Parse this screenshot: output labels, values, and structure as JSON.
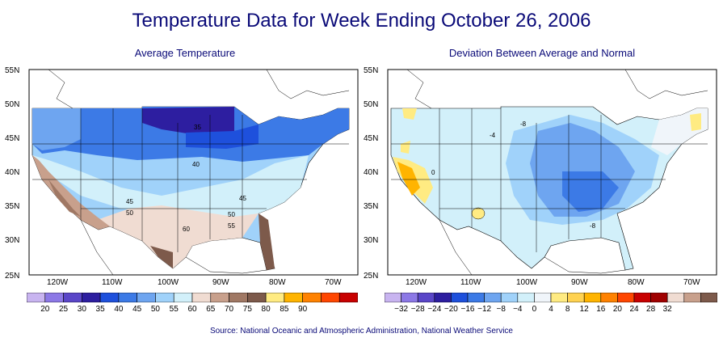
{
  "title": "Temperature Data for Week Ending October 26, 2006",
  "left_panel": {
    "subtitle": "Average Temperature",
    "lat_ticks": [
      "55N",
      "50N",
      "45N",
      "40N",
      "35N",
      "30N",
      "25N"
    ],
    "lon_ticks": [
      "120W",
      "110W",
      "100W",
      "90W",
      "80W",
      "70W"
    ],
    "contour_labels": [
      "35",
      "40",
      "45",
      "45",
      "50",
      "50",
      "60",
      "55"
    ],
    "colorbar": {
      "labels": [
        "20",
        "25",
        "30",
        "35",
        "40",
        "45",
        "50",
        "55",
        "60",
        "65",
        "70",
        "75",
        "80",
        "85",
        "90"
      ],
      "colors": [
        "#c8b4f0",
        "#8c78e6",
        "#5a46c8",
        "#2d1ea0",
        "#1e50dc",
        "#3c7ae6",
        "#6ea5f0",
        "#a0d2fa",
        "#d2f0fa",
        "#f0dcd2",
        "#c8a08c",
        "#a07864",
        "#7d5a4b",
        "#ffeb82",
        "#ffb400",
        "#ff8200",
        "#ff4600",
        "#c80000"
      ]
    }
  },
  "right_panel": {
    "subtitle": "Deviation Between Average and Normal",
    "lat_ticks": [
      "55N",
      "50N",
      "45N",
      "40N",
      "35N",
      "30N",
      "25N"
    ],
    "lon_ticks": [
      "120W",
      "110W",
      "100W",
      "90W",
      "80W",
      "70W"
    ],
    "contour_labels": [
      "-8",
      "-4",
      "0",
      "-8"
    ],
    "colorbar": {
      "labels": [
        "−32",
        "−28",
        "−24",
        "−20",
        "−16",
        "−12",
        "−8",
        "−4",
        "0",
        "4",
        "8",
        "12",
        "16",
        "20",
        "24",
        "28",
        "32"
      ],
      "colors": [
        "#c8b4f0",
        "#8c78e6",
        "#5a46c8",
        "#2d1ea0",
        "#1e50dc",
        "#3c7ae6",
        "#6ea5f0",
        "#a0d2fa",
        "#d2f0fa",
        "#f0f5fa",
        "#ffeb82",
        "#ffd250",
        "#ffb400",
        "#ff8200",
        "#ff4600",
        "#c80000",
        "#a00000",
        "#f0dcd2",
        "#c8a08c",
        "#7d5a4b"
      ]
    }
  },
  "source": "Source:  National Oceanic and Atmospheric Administration, National Weather Service"
}
